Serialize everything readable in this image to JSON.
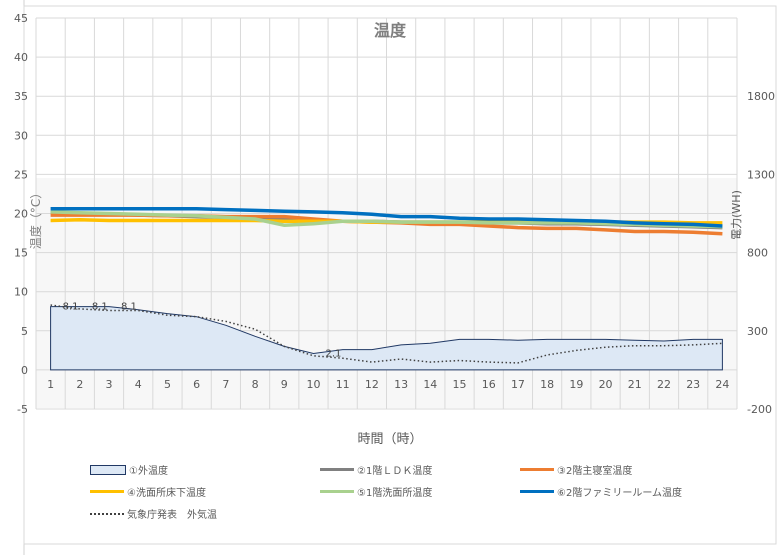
{
  "chart_data": {
    "type": "line",
    "title": "温度",
    "xlabel": "時間（時）",
    "ylabel": "温度（°C）",
    "y2label": "電力(WH)",
    "categories": [
      "1",
      "2",
      "3",
      "4",
      "5",
      "6",
      "7",
      "8",
      "9",
      "10",
      "11",
      "12",
      "13",
      "14",
      "15",
      "16",
      "17",
      "18",
      "19",
      "20",
      "21",
      "22",
      "23",
      "24"
    ],
    "ylim": [
      -5,
      45
    ],
    "yticks": [
      "-5",
      "0",
      "5",
      "10",
      "15",
      "20",
      "25",
      "30",
      "35",
      "40",
      "45"
    ],
    "y2lim": [
      -200,
      2300
    ],
    "y2ticks": [
      "-200",
      "300",
      "800",
      "1300",
      "1800"
    ],
    "grid": true,
    "legend_placement": "bottom",
    "series": [
      {
        "name": "①外温度",
        "style": "area",
        "color": "#dde8f5",
        "stroke": "#203864",
        "values": [
          8.1,
          8.1,
          8.1,
          7.7,
          7.2,
          6.8,
          5.7,
          4.3,
          3.0,
          2.1,
          2.6,
          2.6,
          3.2,
          3.4,
          3.9,
          3.9,
          3.8,
          3.9,
          3.9,
          3.9,
          3.8,
          3.7,
          3.9,
          3.9
        ],
        "data_labels": [
          {
            "index": 0,
            "text": "8.1"
          },
          {
            "index": 1,
            "text": "8.1"
          },
          {
            "index": 2,
            "text": "8.1"
          },
          {
            "index": 9,
            "text": "2.1"
          }
        ]
      },
      {
        "name": "②1階ＬＤＫ温度",
        "color": "#808080",
        "values": [
          20.1,
          20.0,
          19.9,
          19.8,
          19.7,
          19.6,
          19.5,
          19.4,
          19.2,
          19.1,
          19.0,
          19.0,
          18.9,
          18.9,
          18.9,
          18.8,
          18.8,
          18.7,
          18.7,
          18.6,
          18.5,
          18.4,
          18.3,
          18.2
        ]
      },
      {
        "name": "③2階主寝室温度",
        "color": "#ed7d31",
        "values": [
          19.8,
          19.8,
          19.8,
          19.8,
          19.7,
          19.7,
          19.6,
          19.6,
          19.6,
          19.3,
          19.0,
          18.9,
          18.8,
          18.6,
          18.6,
          18.4,
          18.2,
          18.1,
          18.1,
          17.9,
          17.7,
          17.7,
          17.6,
          17.4
        ]
      },
      {
        "name": "④洗面所床下温度",
        "color": "#ffc000",
        "values": [
          19.1,
          19.2,
          19.1,
          19.1,
          19.1,
          19.1,
          19.1,
          19.1,
          19.0,
          19.0,
          19.0,
          18.9,
          18.9,
          18.9,
          18.9,
          18.9,
          18.9,
          18.9,
          18.9,
          18.9,
          18.9,
          18.9,
          18.8,
          18.8
        ]
      },
      {
        "name": "⑤1階洗面所温度",
        "color": "#a9d18e",
        "values": [
          20.2,
          20.1,
          20.0,
          19.9,
          19.8,
          19.7,
          19.5,
          19.3,
          18.5,
          18.7,
          19.0,
          19.0,
          18.9,
          18.9,
          18.9,
          18.8,
          18.8,
          18.8,
          18.8,
          18.7,
          18.6,
          18.5,
          18.4,
          18.3
        ]
      },
      {
        "name": "⑥2階ファミリールーム温度",
        "color": "#0070c0",
        "values": [
          20.6,
          20.6,
          20.6,
          20.6,
          20.6,
          20.6,
          20.5,
          20.4,
          20.3,
          20.2,
          20.1,
          19.9,
          19.6,
          19.6,
          19.4,
          19.3,
          19.3,
          19.2,
          19.1,
          19.0,
          18.8,
          18.7,
          18.6,
          18.4
        ]
      },
      {
        "name": "気象庁発表　外気温",
        "style": "dotted",
        "color": "#404040",
        "values": [
          8.3,
          7.8,
          7.6,
          7.6,
          7.0,
          6.8,
          6.2,
          5.2,
          3.0,
          1.8,
          1.5,
          1.0,
          1.4,
          1.0,
          1.2,
          1.0,
          0.9,
          1.9,
          2.5,
          2.9,
          3.1,
          3.1,
          3.2,
          3.4
        ]
      }
    ]
  }
}
